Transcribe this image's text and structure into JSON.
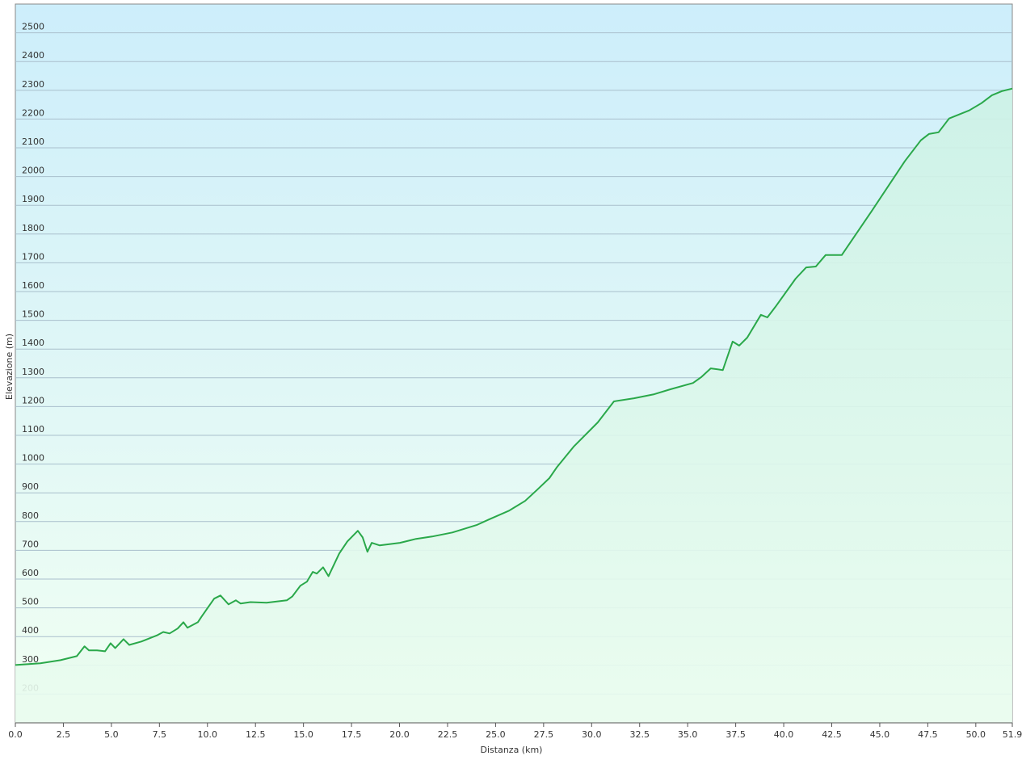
{
  "chart_data": {
    "type": "area",
    "xlabel": "Distanza  (km)",
    "ylabel": "Elevazione (m)",
    "color": "#2aa84a",
    "grid": true,
    "x": [
      0,
      1.3,
      2.35,
      3.2,
      3.6,
      3.83,
      4.25,
      4.67,
      4.96,
      5.2,
      5.63,
      5.93,
      6.56,
      7.4,
      7.7,
      8.03,
      8.45,
      8.75,
      8.96,
      9.5,
      9.7,
      10.35,
      10.68,
      11.1,
      11.48,
      11.73,
      12.24,
      13.08,
      14.13,
      14.42,
      14.84,
      15.18,
      15.48,
      15.69,
      16.02,
      16.3,
      16.86,
      17.28,
      17.83,
      18.08,
      18.33,
      18.55,
      18.97,
      20.02,
      20.86,
      21.7,
      22.75,
      24.01,
      24.64,
      25.7,
      26.54,
      27.17,
      27.8,
      28.2,
      29.06,
      30.32,
      31.16,
      32.21,
      33.26,
      34.1,
      35.28,
      35.7,
      36.2,
      36.83,
      37.34,
      37.68,
      38.1,
      38.81,
      39.15,
      39.57,
      40.62,
      41.17,
      41.67,
      42.18,
      43.02,
      44.62,
      46.3,
      47.14,
      47.56,
      48.06,
      48.61,
      49.66,
      50.29,
      50.84,
      51.35,
      51.9
    ],
    "values": [
      301,
      307,
      318,
      332,
      366,
      352,
      352,
      349,
      377,
      360,
      391,
      371,
      383,
      405,
      416,
      411,
      428,
      450,
      431,
      450,
      470,
      532,
      543,
      512,
      526,
      515,
      520,
      518,
      526,
      540,
      577,
      591,
      625,
      619,
      641,
      610,
      689,
      731,
      768,
      745,
      695,
      726,
      717,
      726,
      740,
      748,
      762,
      788,
      807,
      838,
      872,
      911,
      951,
      990,
      1060,
      1145,
      1218,
      1229,
      1243,
      1260,
      1282,
      1302,
      1333,
      1327,
      1426,
      1412,
      1440,
      1519,
      1510,
      1547,
      1645,
      1684,
      1687,
      1727,
      1727,
      1884,
      2053,
      2126,
      2148,
      2154,
      2202,
      2230,
      2255,
      2283,
      2297,
      2306
    ],
    "xlim": [
      0,
      51.9
    ],
    "ylim": [
      100,
      2600
    ],
    "xticks": [
      {
        "value": 0,
        "label": "0.0"
      },
      2.5,
      {
        "value": 5,
        "label": "5.0"
      },
      7.5,
      {
        "value": 10,
        "label": "10.0"
      },
      12.5,
      {
        "value": 15,
        "label": "15.0"
      },
      17.5,
      {
        "value": 20,
        "label": "20.0"
      },
      22.5,
      {
        "value": 25,
        "label": "25.0"
      },
      27.5,
      {
        "value": 30,
        "label": "30.0"
      },
      32.5,
      {
        "value": 35,
        "label": "35.0"
      },
      37.5,
      {
        "value": 40,
        "label": "40.0"
      },
      42.5,
      {
        "value": 45,
        "label": "45.0"
      },
      47.5,
      {
        "value": 50,
        "label": "50.0"
      },
      51.9
    ],
    "yticks": [
      200,
      300,
      400,
      500,
      600,
      700,
      800,
      900,
      1000,
      1100,
      1200,
      1300,
      1400,
      1500,
      1600,
      1700,
      1800,
      1900,
      2000,
      2100,
      2200,
      2300,
      2400,
      2500
    ]
  }
}
